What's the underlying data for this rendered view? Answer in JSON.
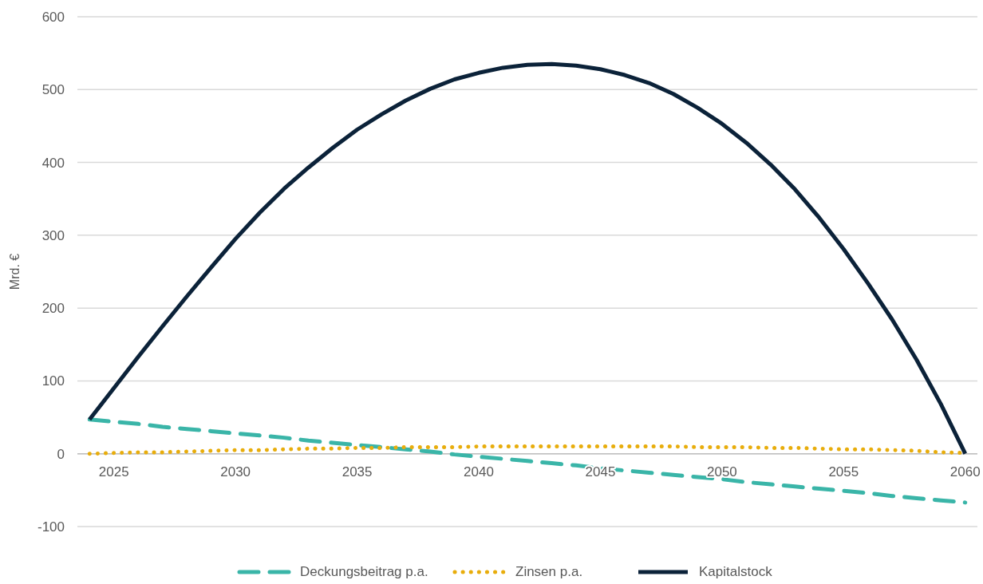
{
  "chart_data": {
    "type": "line",
    "ylabel": "Mrd. €",
    "x": [
      2024,
      2025,
      2026,
      2027,
      2028,
      2029,
      2030,
      2031,
      2032,
      2033,
      2034,
      2035,
      2036,
      2037,
      2038,
      2039,
      2040,
      2041,
      2042,
      2043,
      2044,
      2045,
      2046,
      2047,
      2048,
      2049,
      2050,
      2051,
      2052,
      2053,
      2054,
      2055,
      2056,
      2057,
      2058,
      2059,
      2060
    ],
    "xlim": [
      2023.5,
      2060.5
    ],
    "xticks": [
      2025,
      2030,
      2035,
      2040,
      2045,
      2050,
      2055,
      2060
    ],
    "ylim": [
      -100,
      600
    ],
    "yticks": [
      -100,
      0,
      100,
      200,
      300,
      400,
      500,
      600
    ],
    "grid": "y",
    "legend": "bottom",
    "series": [
      {
        "name": "Deckungsbeitrag p.a.",
        "color": "#3ab5a8",
        "line_style": "dashed",
        "values": [
          47,
          44,
          41,
          37,
          34,
          31,
          28,
          25,
          22,
          18,
          15,
          12,
          9,
          6,
          3,
          -1,
          -4,
          -7,
          -10,
          -13,
          -16,
          -20,
          -23,
          -26,
          -29,
          -32,
          -35,
          -39,
          -42,
          -45,
          -48,
          -51,
          -54,
          -58,
          -61,
          -64,
          -67
        ]
      },
      {
        "name": "Zinsen p.a.",
        "color": "#e8ad0c",
        "line_style": "dotted",
        "values": [
          0,
          1,
          2,
          2,
          3,
          4,
          5,
          5,
          6,
          7,
          7,
          8,
          8,
          9,
          9,
          9,
          10,
          10,
          10,
          10,
          10,
          10,
          10,
          10,
          10,
          9,
          9,
          9,
          8,
          8,
          7,
          6,
          6,
          5,
          4,
          2,
          1
        ]
      },
      {
        "name": "Kapitalstock",
        "color": "#0b2239",
        "line_style": "solid",
        "values": [
          47,
          90,
          133,
          175,
          216,
          256,
          295,
          331,
          364,
          393,
          420,
          445,
          466,
          485,
          501,
          514,
          523,
          530,
          534,
          535,
          533,
          528,
          520,
          509,
          494,
          475,
          453,
          427,
          397,
          363,
          324,
          281,
          234,
          184,
          129,
          68,
          0
        ]
      }
    ]
  }
}
